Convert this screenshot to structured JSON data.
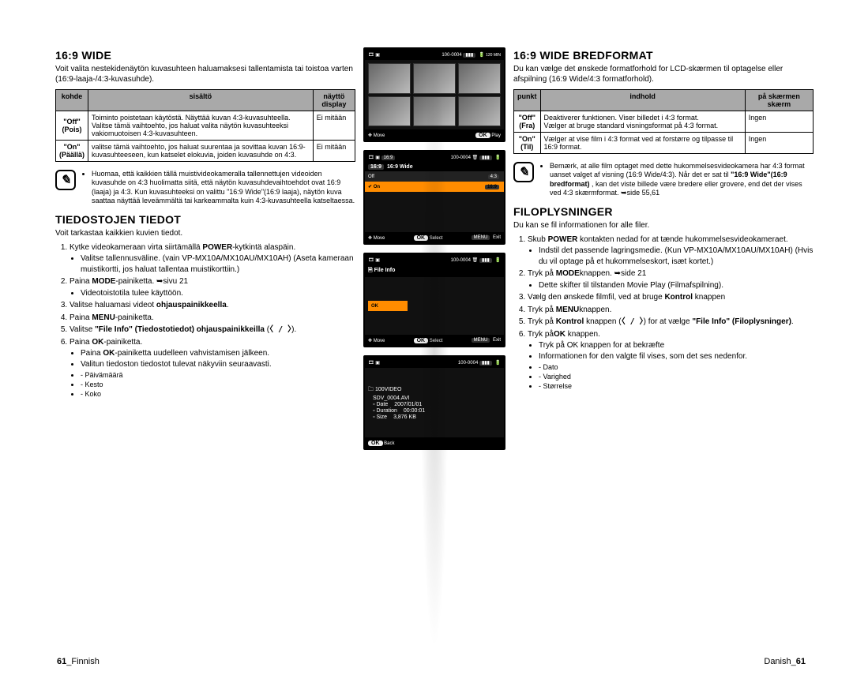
{
  "left": {
    "h1": "16:9 WIDE",
    "intro": "Voit valita nestekidenäytön kuvasuhteen haluamaksesi tallentamista tai toistoa varten (16:9-laaja-/4:3-kuvasuhde).",
    "table": {
      "cols": [
        "kohde",
        "sisältö",
        "näyttö display"
      ],
      "rows": [
        {
          "k": "\"Off\"\n(Pois)",
          "s": "Toiminto poistetaan käytöstä. Näyttää kuvan 4:3-kuvasuhteella.\nValitse tämä vaihtoehto, jos haluat valita näytön kuvasuhteeksi vakiomuotoisen 4:3-kuvasuhteen.",
          "d": "Ei mitään"
        },
        {
          "k": "\"On\"\n(Päällä)",
          "s": "valitse tämä vaihtoehto, jos haluat suurentaa ja sovittaa kuvan 16:9-kuvasuhteeseen, kun katselet elokuvia, joiden kuvasuhde on 4:3.",
          "d": "Ei mitään"
        }
      ]
    },
    "note": "Huomaa, että kaikkien tällä muistivideokameralla tallennettujen videoiden kuvasuhde on 4:3 huolimatta siitä, että näytön kuvasuhdevaihtoehdot ovat 16:9 (laaja) ja 4:3. Kun kuvasuhteeksi on valittu \"16:9 Wide\"(16:9 laaja), näytön kuva saattaa näyttää leveämmältä tai karkeammalta kuin 4:3-kuvasuhteella katseltaessa.",
    "h2": "TIEDOSTOJEN TIEDOT",
    "sub": "Voit tarkastaa kaikkien kuvien tiedot.",
    "steps": [
      {
        "t": "Kytke videokameraan virta siirtämällä <b>POWER</b>-kytkintä alaspäin.",
        "b": [
          "Valitse tallennusväline. (vain VP-MX10A/MX10AU/MX10AH) (Aseta kameraan muistikortti, jos haluat tallentaa muistikorttiin.)"
        ]
      },
      {
        "t": "Paina <b>MODE</b>-painiketta. ➥sivu 21",
        "b": [
          "Videotoistotila tulee käyttöön."
        ]
      },
      {
        "t": "Valitse haluamasi videot <b>ohjauspainikkeella</b>."
      },
      {
        "t": "Paina <b>MENU</b>-painiketta."
      },
      {
        "t": "Valitse <b>\"File Info\" (Tiedostotiedot) ohjauspainikkeilla</b>  (<span class='chev'>〈 / 〉</span>)."
      },
      {
        "t": "Paina <b>OK</b>-painiketta.",
        "b": [
          "Paina <b>OK</b>-painiketta uudelleen vahvistamisen jälkeen.",
          "Valitun tiedoston tiedostot tulevat näkyviin seuraavasti."
        ],
        "d": [
          "Päivämäärä",
          "Kesto",
          "Koko"
        ]
      }
    ]
  },
  "right": {
    "h1": "16:9 WIDE BREDFORMAT",
    "intro": "Du kan vælge det ønskede formatforhold for LCD-skærmen til optagelse eller afspilning (16:9 Wide/4:3 formatforhold).",
    "table": {
      "cols": [
        "punkt",
        "indhold",
        "på skærmen skærm"
      ],
      "rows": [
        {
          "k": "\"Off\"\n(Fra)",
          "s": "Deaktiverer funktionen. Viser billedet i 4:3 format.\nVælger at bruge standard visningsformat på 4:3 format.",
          "d": "Ingen"
        },
        {
          "k": "\"On\"\n(Til)",
          "s": "Vælger at vise film i 4:3 format ved at forstørre og tilpasse til 16:9 format.",
          "d": "Ingen"
        }
      ]
    },
    "note": "Bemærk, at alle film optaget med dette hukommelsesvideokamera har 4:3 format uanset valget af visning (16:9 Wide/4:3). Når det er sat til <b>\"16:9 Wide\"(16:9 bredformat)</b> , kan det viste billede være bredere eller grovere, end det der vises ved 4:3 skærmformat. ➥side 55,61",
    "h2": "FILOPLYSNINGER",
    "sub": "Du kan se fil  informationen for alle filer.",
    "steps": [
      {
        "t": "Skub <b>POWER</b> kontakten nedad for at tænde hukommelsesvideokameraet.",
        "b": [
          "Indstil det passende lagringsmedie. (Kun VP-MX10A/MX10AU/MX10AH) (Hvis du vil optage på et hukommelseskort, isæt kortet.)"
        ]
      },
      {
        "t": "Tryk på <b>MODE</b>knappen. ➥side 21",
        "b": [
          "Dette skifter til tilstanden Movie Play (Filmafspilning)."
        ]
      },
      {
        "t": "Vælg den ønskede filmfil, ved at bruge <b>Kontrol</b> knappen"
      },
      {
        "t": "Tryk på <b>MENU</b>knappen."
      },
      {
        "t": "Tryk på <b>Kontrol</b> knappen  (<span class='chev'>〈 / 〉</span>) for at vælge <b>\"File Info\" (Filoplysninger)</b>."
      },
      {
        "t": "Tryk på<b>OK</b> knappen.",
        "b": [
          "Tryk på OK knappen for at bekræfte",
          "Informationen for den valgte fil vises, som det ses nedenfor."
        ],
        "d": [
          "Dato",
          "Varighed",
          "Størrelse"
        ]
      }
    ]
  },
  "center": {
    "code": "100-0004",
    "min": "120 MIN",
    "move": "Move",
    "play": "Play",
    "select": "Select",
    "exit": "Exit",
    "back": "Back",
    "wideTitle": "16:9 Wide",
    "off": "Off",
    "on": "On",
    "fileInfo": "File Info",
    "ok": "OK",
    "folder": "100VIDEO",
    "fname": "SDV_0004.AVI",
    "rows": [
      {
        "l": "Date",
        "v": "2007/01/01"
      },
      {
        "l": "Duration",
        "v": "00:00:01"
      },
      {
        "l": "Size",
        "v": "3,876 KB"
      }
    ]
  },
  "footer": {
    "left_num": "61",
    "left_lang": "Finnish",
    "right_lang": "Danish",
    "right_num": "61"
  },
  "colors": {
    "headerBg": "#a9a9a9",
    "lcdBg": "#111111",
    "highlight": "#ff8c00"
  }
}
